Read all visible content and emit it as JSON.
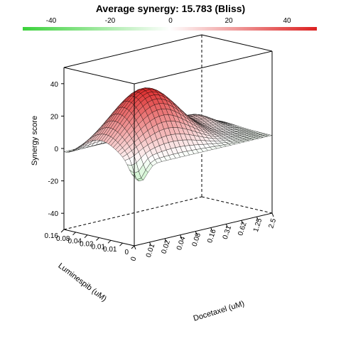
{
  "chart_data": {
    "type": "surface3d",
    "title": "Average synergy: 15.783 (Bliss)",
    "colorbar": {
      "ticks": [
        "-40",
        "-20",
        "0",
        "20",
        "40"
      ],
      "range": [
        -50,
        50
      ],
      "low_color": "#3bd13b",
      "mid_color": "#ffffff",
      "high_color": "#dc2020"
    },
    "z_axis": {
      "label": "Synergy score",
      "ticks": [
        "40",
        "20",
        "0",
        "-20",
        "-40"
      ],
      "range": [
        -50,
        50
      ]
    },
    "y_axis": {
      "label": "Luminespib (uM)",
      "ticks": [
        "0",
        "0.01",
        "0.01",
        "0.02",
        "0.04",
        "0.08",
        "0.16"
      ]
    },
    "x_axis": {
      "label": "Docetaxel (uM)",
      "ticks": [
        "0",
        "0.01",
        "0.02",
        "0.04",
        "0.08",
        "0.16",
        "0.31",
        "0.62",
        "1.25",
        "2.5"
      ]
    },
    "peak_synergy": 38,
    "grid_resolution": 30
  }
}
